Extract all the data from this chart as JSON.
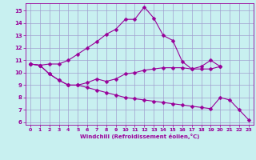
{
  "line1": [
    10.7,
    10.6,
    10.7,
    10.7,
    11.0,
    11.5,
    12.0,
    12.5,
    13.1,
    13.5,
    14.3,
    14.3,
    15.3,
    14.4,
    13.0,
    12.6,
    10.9,
    10.3,
    10.5,
    11.0,
    10.5,
    null,
    null,
    null
  ],
  "line2": [
    10.7,
    10.6,
    9.9,
    9.4,
    9.0,
    9.0,
    9.2,
    9.5,
    9.3,
    9.5,
    9.9,
    10.0,
    10.2,
    10.3,
    10.4,
    10.4,
    10.4,
    10.3,
    10.3,
    10.3,
    10.5,
    null,
    null,
    null
  ],
  "line3": [
    10.7,
    10.6,
    9.9,
    9.4,
    9.0,
    9.0,
    8.8,
    8.6,
    8.4,
    8.2,
    8.0,
    7.9,
    7.8,
    7.7,
    7.6,
    7.5,
    7.4,
    7.3,
    7.2,
    7.1,
    8.0,
    7.8,
    7.0,
    6.2
  ],
  "x": [
    0,
    1,
    2,
    3,
    4,
    5,
    6,
    7,
    8,
    9,
    10,
    11,
    12,
    13,
    14,
    15,
    16,
    17,
    18,
    19,
    20,
    21,
    22,
    23
  ],
  "xlim": [
    -0.5,
    23.5
  ],
  "ylim": [
    5.8,
    15.6
  ],
  "yticks": [
    6,
    7,
    8,
    9,
    10,
    11,
    12,
    13,
    14,
    15
  ],
  "xticks": [
    0,
    1,
    2,
    3,
    4,
    5,
    6,
    7,
    8,
    9,
    10,
    11,
    12,
    13,
    14,
    15,
    16,
    17,
    18,
    19,
    20,
    21,
    22,
    23
  ],
  "xlabel": "Windchill (Refroidissement éolien,°C)",
  "line_color": "#990099",
  "bg_color": "#c8f0f0",
  "grid_color": "#a0a0d0",
  "marker_size": 2.5
}
